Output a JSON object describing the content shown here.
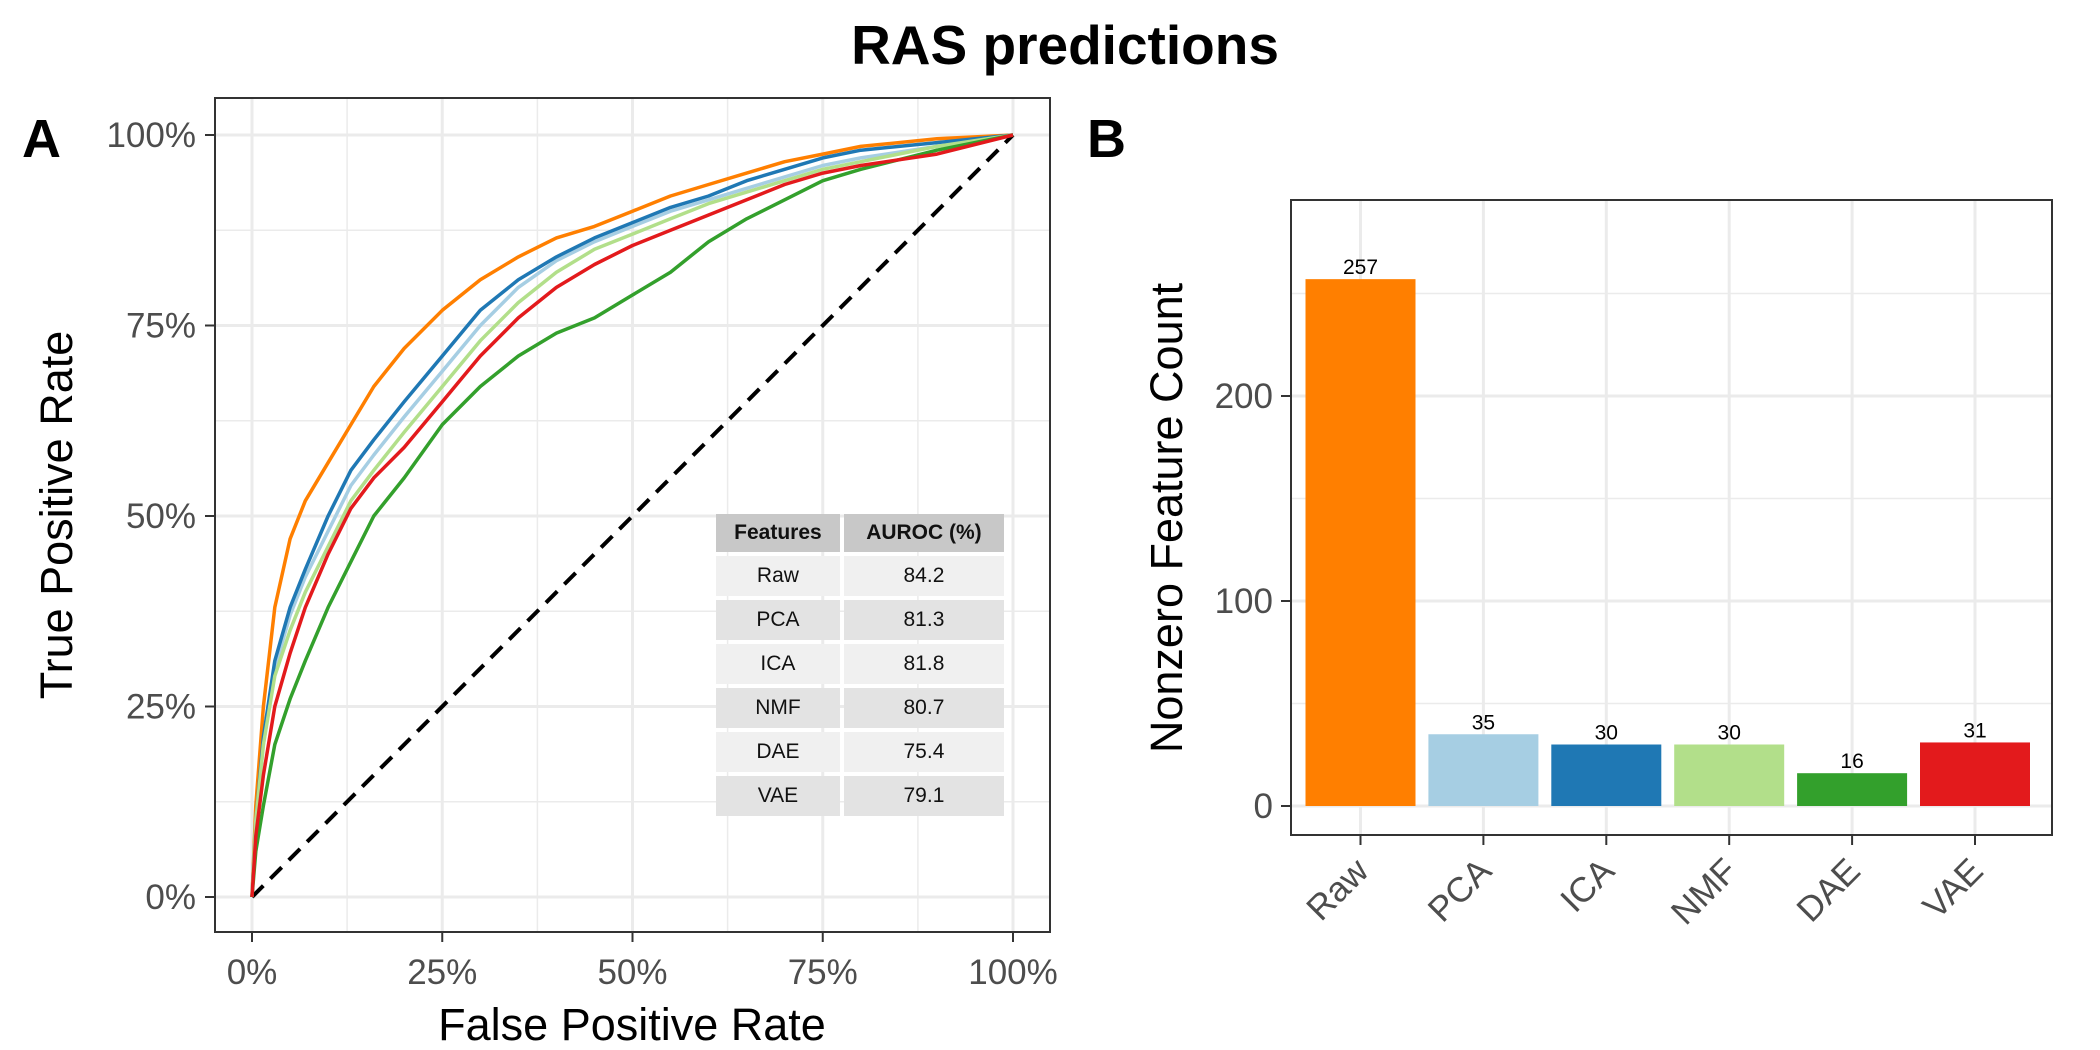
{
  "title": "RAS predictions",
  "chart_data": [
    {
      "panel": "A",
      "type": "line",
      "xlabel": "False Positive Rate",
      "ylabel": "True Positive Rate",
      "xlim": [
        0,
        1
      ],
      "ylim": [
        0,
        1
      ],
      "x_ticks": [
        "0%",
        "25%",
        "50%",
        "75%",
        "100%"
      ],
      "y_ticks": [
        "0%",
        "25%",
        "50%",
        "75%",
        "100%"
      ],
      "grid": true,
      "reference_line": {
        "style": "dashed",
        "color": "#000000",
        "points": [
          [
            0,
            0
          ],
          [
            1,
            1
          ]
        ]
      },
      "series": [
        {
          "key": "Raw",
          "color": "#FF7F00",
          "points": [
            [
              0,
              0
            ],
            [
              0.005,
              0.12
            ],
            [
              0.015,
              0.25
            ],
            [
              0.03,
              0.38
            ],
            [
              0.05,
              0.47
            ],
            [
              0.07,
              0.52
            ],
            [
              0.1,
              0.57
            ],
            [
              0.13,
              0.62
            ],
            [
              0.16,
              0.67
            ],
            [
              0.2,
              0.72
            ],
            [
              0.25,
              0.77
            ],
            [
              0.3,
              0.81
            ],
            [
              0.35,
              0.84
            ],
            [
              0.4,
              0.865
            ],
            [
              0.45,
              0.88
            ],
            [
              0.5,
              0.9
            ],
            [
              0.55,
              0.92
            ],
            [
              0.6,
              0.935
            ],
            [
              0.65,
              0.95
            ],
            [
              0.7,
              0.965
            ],
            [
              0.75,
              0.975
            ],
            [
              0.8,
              0.985
            ],
            [
              0.9,
              0.995
            ],
            [
              1,
              1
            ]
          ]
        },
        {
          "key": "PCA",
          "color": "#A6CEE3",
          "points": [
            [
              0,
              0
            ],
            [
              0.005,
              0.1
            ],
            [
              0.015,
              0.2
            ],
            [
              0.03,
              0.3
            ],
            [
              0.05,
              0.37
            ],
            [
              0.07,
              0.42
            ],
            [
              0.1,
              0.48
            ],
            [
              0.13,
              0.54
            ],
            [
              0.16,
              0.58
            ],
            [
              0.2,
              0.63
            ],
            [
              0.25,
              0.69
            ],
            [
              0.3,
              0.75
            ],
            [
              0.35,
              0.8
            ],
            [
              0.4,
              0.835
            ],
            [
              0.45,
              0.86
            ],
            [
              0.5,
              0.88
            ],
            [
              0.55,
              0.9
            ],
            [
              0.6,
              0.915
            ],
            [
              0.65,
              0.93
            ],
            [
              0.7,
              0.945
            ],
            [
              0.75,
              0.96
            ],
            [
              0.8,
              0.97
            ],
            [
              0.9,
              0.985
            ],
            [
              1,
              1
            ]
          ]
        },
        {
          "key": "ICA",
          "color": "#1F78B4",
          "points": [
            [
              0,
              0
            ],
            [
              0.005,
              0.1
            ],
            [
              0.015,
              0.21
            ],
            [
              0.03,
              0.31
            ],
            [
              0.05,
              0.38
            ],
            [
              0.07,
              0.43
            ],
            [
              0.1,
              0.5
            ],
            [
              0.13,
              0.56
            ],
            [
              0.16,
              0.6
            ],
            [
              0.2,
              0.65
            ],
            [
              0.25,
              0.71
            ],
            [
              0.3,
              0.77
            ],
            [
              0.35,
              0.81
            ],
            [
              0.4,
              0.84
            ],
            [
              0.45,
              0.865
            ],
            [
              0.5,
              0.885
            ],
            [
              0.55,
              0.905
            ],
            [
              0.6,
              0.92
            ],
            [
              0.65,
              0.94
            ],
            [
              0.7,
              0.955
            ],
            [
              0.75,
              0.97
            ],
            [
              0.8,
              0.98
            ],
            [
              0.9,
              0.99
            ],
            [
              1,
              1
            ]
          ]
        },
        {
          "key": "NMF",
          "color": "#B2DF8A",
          "points": [
            [
              0,
              0
            ],
            [
              0.005,
              0.1
            ],
            [
              0.015,
              0.2
            ],
            [
              0.03,
              0.29
            ],
            [
              0.05,
              0.35
            ],
            [
              0.07,
              0.4
            ],
            [
              0.1,
              0.46
            ],
            [
              0.13,
              0.52
            ],
            [
              0.16,
              0.56
            ],
            [
              0.2,
              0.61
            ],
            [
              0.25,
              0.67
            ],
            [
              0.3,
              0.73
            ],
            [
              0.35,
              0.78
            ],
            [
              0.4,
              0.82
            ],
            [
              0.45,
              0.85
            ],
            [
              0.5,
              0.87
            ],
            [
              0.55,
              0.89
            ],
            [
              0.6,
              0.91
            ],
            [
              0.65,
              0.925
            ],
            [
              0.7,
              0.94
            ],
            [
              0.75,
              0.955
            ],
            [
              0.8,
              0.965
            ],
            [
              0.9,
              0.985
            ],
            [
              1,
              1
            ]
          ]
        },
        {
          "key": "DAE",
          "color": "#33A02C",
          "points": [
            [
              0,
              0
            ],
            [
              0.005,
              0.06
            ],
            [
              0.015,
              0.12
            ],
            [
              0.03,
              0.2
            ],
            [
              0.05,
              0.26
            ],
            [
              0.07,
              0.31
            ],
            [
              0.1,
              0.38
            ],
            [
              0.13,
              0.44
            ],
            [
              0.16,
              0.5
            ],
            [
              0.2,
              0.55
            ],
            [
              0.25,
              0.62
            ],
            [
              0.3,
              0.67
            ],
            [
              0.35,
              0.71
            ],
            [
              0.4,
              0.74
            ],
            [
              0.45,
              0.76
            ],
            [
              0.5,
              0.79
            ],
            [
              0.55,
              0.82
            ],
            [
              0.6,
              0.86
            ],
            [
              0.65,
              0.89
            ],
            [
              0.7,
              0.915
            ],
            [
              0.75,
              0.94
            ],
            [
              0.8,
              0.955
            ],
            [
              0.9,
              0.98
            ],
            [
              1,
              1
            ]
          ]
        },
        {
          "key": "VAE",
          "color": "#E31A1C",
          "points": [
            [
              0,
              0
            ],
            [
              0.005,
              0.08
            ],
            [
              0.015,
              0.16
            ],
            [
              0.03,
              0.25
            ],
            [
              0.05,
              0.32
            ],
            [
              0.07,
              0.38
            ],
            [
              0.1,
              0.45
            ],
            [
              0.13,
              0.51
            ],
            [
              0.16,
              0.55
            ],
            [
              0.2,
              0.59
            ],
            [
              0.25,
              0.65
            ],
            [
              0.3,
              0.71
            ],
            [
              0.35,
              0.76
            ],
            [
              0.4,
              0.8
            ],
            [
              0.45,
              0.83
            ],
            [
              0.5,
              0.855
            ],
            [
              0.55,
              0.875
            ],
            [
              0.6,
              0.895
            ],
            [
              0.65,
              0.915
            ],
            [
              0.7,
              0.935
            ],
            [
              0.75,
              0.95
            ],
            [
              0.8,
              0.96
            ],
            [
              0.9,
              0.975
            ],
            [
              1,
              1
            ]
          ]
        }
      ],
      "table": {
        "headers": [
          "Features",
          "AUROC (%)"
        ],
        "rows": [
          [
            "Raw",
            "84.2"
          ],
          [
            "PCA",
            "81.3"
          ],
          [
            "ICA",
            "81.8"
          ],
          [
            "NMF",
            "80.7"
          ],
          [
            "DAE",
            "75.4"
          ],
          [
            "VAE",
            "79.1"
          ]
        ]
      }
    },
    {
      "panel": "B",
      "type": "bar",
      "xlabel": "",
      "ylabel": "Nonzero Feature Count",
      "ylim": [
        0,
        295
      ],
      "y_ticks": [
        0,
        100,
        200
      ],
      "grid": true,
      "categories": [
        "Raw",
        "PCA",
        "ICA",
        "NMF",
        "DAE",
        "VAE"
      ],
      "values": [
        257,
        35,
        30,
        30,
        16,
        31
      ],
      "labels": [
        "257",
        "35",
        "30",
        "30",
        "16",
        "31"
      ],
      "colors": [
        "#FF7F00",
        "#A6CEE3",
        "#1F78B4",
        "#B2DF8A",
        "#33A02C",
        "#E31A1C"
      ]
    }
  ]
}
